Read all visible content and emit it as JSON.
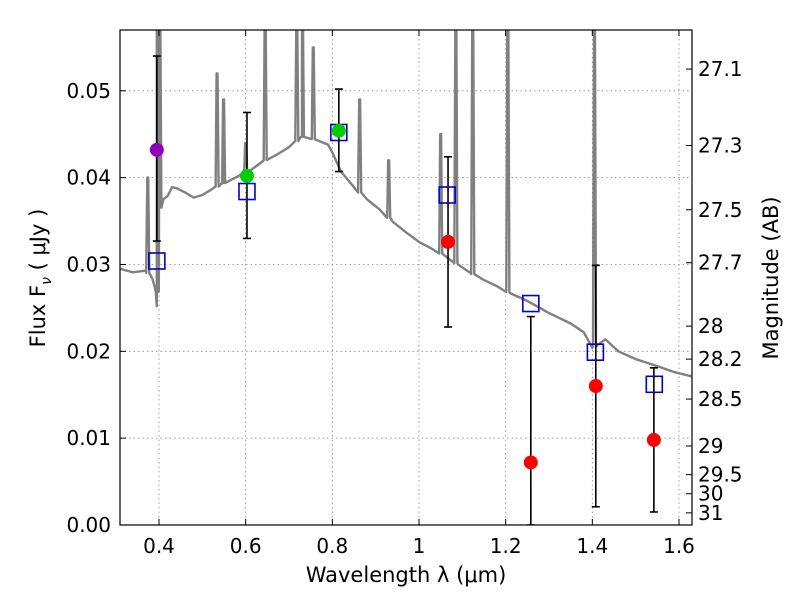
{
  "chart_data": {
    "type": "scatter",
    "title": "",
    "xlabel": "Wavelength  λ (μm)",
    "ylabel": "Flux  F",
    "ylabel_subscript": "ν",
    "ylabel_unit": "  ( μJy )",
    "y2label": "Magnitude (AB)",
    "xlim": [
      0.31,
      1.63
    ],
    "ylim": [
      0.0,
      0.057
    ],
    "grid": true,
    "x_ticks": [
      0.4,
      0.6,
      0.8,
      1.0,
      1.2,
      1.4,
      1.6
    ],
    "x_tick_labels": [
      "0.4",
      "0.6",
      "0.8",
      "1",
      "1.2",
      "1.4",
      "1.6"
    ],
    "y_ticks": [
      0.0,
      0.01,
      0.02,
      0.03,
      0.04,
      0.05
    ],
    "y_tick_labels": [
      "0.00",
      "0.01",
      "0.02",
      "0.03",
      "0.04",
      "0.05"
    ],
    "y2_ticks": [
      {
        "flux": 0.0525,
        "label": "27.1"
      },
      {
        "flux": 0.0437,
        "label": "27.3"
      },
      {
        "flux": 0.0363,
        "label": "27.5"
      },
      {
        "flux": 0.0302,
        "label": "27.7"
      },
      {
        "flux": 0.0229,
        "label": "28"
      },
      {
        "flux": 0.0191,
        "label": "28.2"
      },
      {
        "flux": 0.0145,
        "label": "28.5"
      },
      {
        "flux": 0.0091,
        "label": "29"
      },
      {
        "flux": 0.0058,
        "label": "29.5"
      },
      {
        "flux": 0.0036,
        "label": "30"
      },
      {
        "flux": 0.0014,
        "label": "31"
      }
    ],
    "colors": {
      "model": "#808080",
      "observed_blue": "#8f00b8",
      "observed_green": "#00cc00",
      "observed_red": "#ff0000",
      "model_photometry": "#0000cc",
      "errorbar": "#000000",
      "grid": "#888888"
    },
    "observed": [
      {
        "x": 0.395,
        "y": 0.0432,
        "yerr_low": 0.0105,
        "yerr_high": 0.0108,
        "color": "#8f00b8"
      },
      {
        "x": 0.603,
        "y": 0.0402,
        "yerr_low": 0.0072,
        "yerr_high": 0.0073,
        "color": "#00cc00"
      },
      {
        "x": 0.815,
        "y": 0.0454,
        "yerr_low": 0.0047,
        "yerr_high": 0.0048,
        "color": "#00cc00"
      },
      {
        "x": 1.067,
        "y": 0.0326,
        "yerr_low": 0.0098,
        "yerr_high": 0.0098,
        "color": "#ff0000"
      },
      {
        "x": 1.258,
        "y": 0.0072,
        "yerr_low": 0.0072,
        "yerr_high": 0.0168,
        "color": "#ff0000"
      },
      {
        "x": 1.408,
        "y": 0.016,
        "yerr_low": 0.0139,
        "yerr_high": 0.0139,
        "color": "#ff0000"
      },
      {
        "x": 1.542,
        "y": 0.0098,
        "yerr_low": 0.0083,
        "yerr_high": 0.0083,
        "color": "#ff0000"
      }
    ],
    "model_photometry": [
      {
        "x": 0.395,
        "y": 0.0304
      },
      {
        "x": 0.603,
        "y": 0.0384
      },
      {
        "x": 0.815,
        "y": 0.0452
      },
      {
        "x": 1.065,
        "y": 0.038
      },
      {
        "x": 1.258,
        "y": 0.0255
      },
      {
        "x": 1.407,
        "y": 0.0199
      },
      {
        "x": 1.543,
        "y": 0.0162
      }
    ],
    "model_spectrum": {
      "x": [
        0.31,
        0.34,
        0.37,
        0.385,
        0.39,
        0.395,
        0.397,
        0.4,
        0.403,
        0.41,
        0.42,
        0.43,
        0.44,
        0.46,
        0.48,
        0.5,
        0.52,
        0.55,
        0.58,
        0.61,
        0.64,
        0.67,
        0.7,
        0.73,
        0.76,
        0.79,
        0.8,
        0.82,
        0.85,
        0.88,
        0.91,
        0.94,
        0.97,
        1.0,
        1.03,
        1.06,
        1.09,
        1.12,
        1.15,
        1.18,
        1.21,
        1.25,
        1.3,
        1.35,
        1.38,
        1.4,
        1.43,
        1.46,
        1.5,
        1.55,
        1.59,
        1.63
      ],
      "y": [
        0.0295,
        0.0291,
        0.0293,
        0.0283,
        0.0274,
        0.0252,
        0.0285,
        0.0352,
        0.0372,
        0.0375,
        0.0379,
        0.0389,
        0.0388,
        0.0383,
        0.0377,
        0.038,
        0.0386,
        0.0394,
        0.0401,
        0.0408,
        0.0419,
        0.0426,
        0.0435,
        0.0447,
        0.0444,
        0.0438,
        0.0429,
        0.0407,
        0.0389,
        0.0375,
        0.0363,
        0.0349,
        0.0337,
        0.0326,
        0.0318,
        0.031,
        0.03,
        0.029,
        0.0282,
        0.0275,
        0.0267,
        0.0258,
        0.0244,
        0.0232,
        0.0222,
        0.0204,
        0.0214,
        0.02,
        0.0191,
        0.0183,
        0.0176,
        0.0171
      ],
      "emission_lines": [
        {
          "x": 0.374,
          "peak": 0.04
        },
        {
          "x": 0.396,
          "peak": 0.059
        },
        {
          "x": 0.402,
          "peak": 0.059
        },
        {
          "x": 0.534,
          "peak": 0.052
        },
        {
          "x": 0.549,
          "peak": 0.049
        },
        {
          "x": 0.6,
          "peak": 0.044
        },
        {
          "x": 0.645,
          "peak": 0.059
        },
        {
          "x": 0.718,
          "peak": 0.059
        },
        {
          "x": 0.731,
          "peak": 0.059
        },
        {
          "x": 0.756,
          "peak": 0.055
        },
        {
          "x": 0.863,
          "peak": 0.049
        },
        {
          "x": 0.93,
          "peak": 0.042
        },
        {
          "x": 1.05,
          "peak": 0.045
        },
        {
          "x": 1.085,
          "peak": 0.059
        },
        {
          "x": 1.124,
          "peak": 0.059
        },
        {
          "x": 1.205,
          "peak": 0.059
        },
        {
          "x": 1.405,
          "peak": 0.059
        }
      ]
    }
  }
}
